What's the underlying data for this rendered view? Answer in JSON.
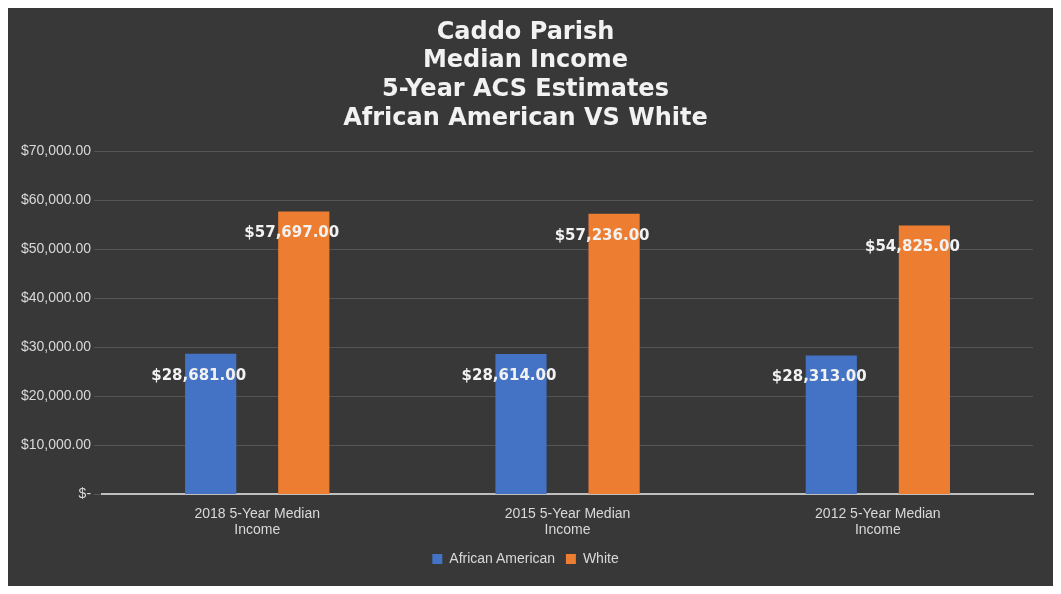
{
  "chart_data": {
    "type": "bar",
    "title": "Caddo Parish\nMedian Income\n5-Year ACS Estimates\nAfrican American VS White",
    "categories": [
      "2018 5-Year Median\nIncome",
      "2015 5-Year Median\nIncome",
      "2012 5-Year Median\nIncome"
    ],
    "series": [
      {
        "name": "African American",
        "color": "#4472c4",
        "values": [
          28681,
          28614,
          28313
        ],
        "value_labels": [
          "$28,681.00",
          "$28,614.00",
          "$28,313.00"
        ]
      },
      {
        "name": "White",
        "color": "#ed7d31",
        "values": [
          57697,
          57236,
          54825
        ],
        "value_labels": [
          "$57,697.00",
          "$57,236.00",
          "$54,825.00"
        ]
      }
    ],
    "ylim": [
      0,
      70000
    ],
    "yticks": [
      {
        "value": 0,
        "label": "$-"
      },
      {
        "value": 10000,
        "label": "$10,000.00"
      },
      {
        "value": 20000,
        "label": "$20,000.00"
      },
      {
        "value": 30000,
        "label": "$30,000.00"
      },
      {
        "value": 40000,
        "label": "$40,000.00"
      },
      {
        "value": 50000,
        "label": "$50,000.00"
      },
      {
        "value": 60000,
        "label": "$60,000.00"
      },
      {
        "value": 70000,
        "label": "$70,000.00"
      }
    ],
    "grid": "y",
    "legend": "bottom"
  }
}
